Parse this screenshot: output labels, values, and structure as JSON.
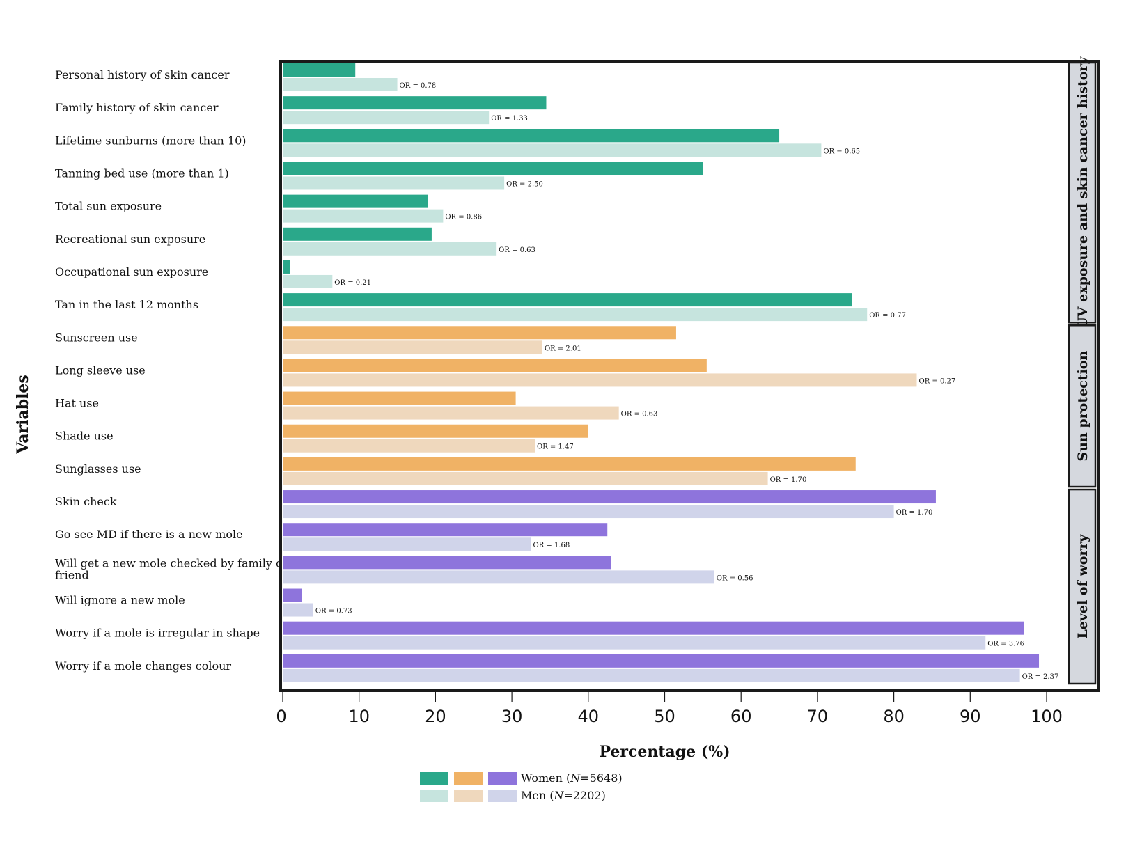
{
  "chart_data": {
    "type": "bar",
    "orientation": "horizontal",
    "xlabel": "Percentage (%)",
    "ylabel": "Variables",
    "xlim": [
      0,
      100
    ],
    "x_ticks": [
      "0",
      "10",
      "20",
      "30",
      "40",
      "50",
      "60",
      "70",
      "80",
      "90",
      "100"
    ],
    "legend": {
      "placement": "bottom-center",
      "women_label": "Women (N=5648)",
      "men_label": "Men (N=2202)"
    },
    "colors": {
      "uv": {
        "women": "#2aa88a",
        "men": "#c6e4de"
      },
      "sun": {
        "women": "#f0b265",
        "men": "#efd8bd"
      },
      "worry": {
        "women": "#8e74dc",
        "men": "#d0d4ea"
      }
    },
    "groups": [
      {
        "name": "UV exposure and skin cancer history",
        "key": "uv",
        "start": 0,
        "end": 7
      },
      {
        "name": "Sun protection",
        "key": "sun",
        "start": 8,
        "end": 12
      },
      {
        "name": "Level of worry",
        "key": "worry",
        "start": 13,
        "end": 18
      }
    ],
    "categories": [
      {
        "label": "Personal history of skin cancer",
        "women": 9.5,
        "men": 15.0,
        "or": "OR = 0.78",
        "group": "uv"
      },
      {
        "label": "Family history of skin cancer",
        "women": 34.5,
        "men": 27.0,
        "or": "OR = 1.33",
        "group": "uv"
      },
      {
        "label": "Lifetime sunburns (more than 10)",
        "women": 65.0,
        "men": 70.5,
        "or": "OR = 0.65",
        "group": "uv"
      },
      {
        "label": "Tanning bed use (more than 1)",
        "women": 55.0,
        "men": 29.0,
        "or": "OR = 2.50",
        "group": "uv"
      },
      {
        "label": "Total sun exposure",
        "women": 19.0,
        "men": 21.0,
        "or": "OR = 0.86",
        "group": "uv"
      },
      {
        "label": "Recreational sun exposure",
        "women": 19.5,
        "men": 28.0,
        "or": "OR = 0.63",
        "group": "uv"
      },
      {
        "label": "Occupational sun exposure",
        "women": 1.0,
        "men": 6.5,
        "or": "OR = 0.21",
        "group": "uv"
      },
      {
        "label": "Tan in the last 12 months",
        "women": 74.5,
        "men": 76.5,
        "or": "OR = 0.77",
        "group": "uv"
      },
      {
        "label": "Sunscreen use",
        "women": 51.5,
        "men": 34.0,
        "or": "OR = 2.01",
        "group": "sun"
      },
      {
        "label": "Long sleeve use",
        "women": 55.5,
        "men": 83.0,
        "or": "OR = 0.27",
        "group": "sun"
      },
      {
        "label": "Hat use",
        "women": 30.5,
        "men": 44.0,
        "or": "OR = 0.63",
        "group": "sun"
      },
      {
        "label": "Shade use",
        "women": 40.0,
        "men": 33.0,
        "or": "OR = 1.47",
        "group": "sun"
      },
      {
        "label": "Sunglasses use",
        "women": 75.0,
        "men": 63.5,
        "or": "OR = 1.70",
        "group": "sun"
      },
      {
        "label": "Skin check",
        "women": 85.5,
        "men": 80.0,
        "or": "OR = 1.70",
        "group": "worry"
      },
      {
        "label": "Go see MD if there is a new mole",
        "women": 42.5,
        "men": 32.5,
        "or": "OR = 1.68",
        "group": "worry"
      },
      {
        "label": "Will get a new mole checked by family or friend",
        "women": 43.0,
        "men": 56.5,
        "or": "OR = 0.56",
        "group": "worry"
      },
      {
        "label": "Will ignore a new mole",
        "women": 2.5,
        "men": 4.0,
        "or": "OR = 0.73",
        "group": "worry"
      },
      {
        "label": "Worry if a mole is irregular in shape",
        "women": 97.0,
        "men": 92.0,
        "or": "OR = 3.76",
        "group": "worry"
      },
      {
        "label": "Worry if a mole changes colour",
        "women": 99.0,
        "men": 96.5,
        "or": "OR = 2.37",
        "group": "worry"
      }
    ]
  }
}
